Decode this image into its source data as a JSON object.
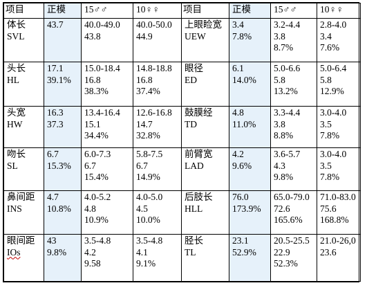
{
  "header": [
    "项目",
    "正模",
    "15♂♂",
    "10♀♀",
    "项目",
    "正模",
    "15♂♂",
    "10♀♀"
  ],
  "rows": [
    {
      "left": {
        "name": [
          "体长",
          "SVL"
        ],
        "holotype": [
          "43.7"
        ],
        "male": [
          "40.0-49.0",
          "43.8"
        ],
        "female": [
          "40.0-50.0",
          "44.9"
        ]
      },
      "right": {
        "name": [
          "上眼睑宽",
          "UEW"
        ],
        "holotype": [
          "3.4",
          "7.8%"
        ],
        "male": [
          "3.2-4.4",
          "3.8",
          "8.7%"
        ],
        "female": [
          "2.8-4.0",
          "3.4",
          "7.6%"
        ]
      }
    },
    {
      "left": {
        "name": [
          "头长",
          "HL"
        ],
        "holotype": [
          "17.1",
          "39.1%"
        ],
        "male": [
          "15.0-18.4",
          "16.8",
          "38.3%"
        ],
        "female": [
          "14.8-18.8",
          "16.8",
          "37.4%"
        ]
      },
      "right": {
        "name": [
          "眼径",
          "ED"
        ],
        "holotype": [
          "6.1",
          "14.0%"
        ],
        "male": [
          "5.0-6.6",
          "5.8",
          "13.2%"
        ],
        "female": [
          "5.0-6.4",
          "5.8",
          "12.9%"
        ]
      }
    },
    {
      "left": {
        "name": [
          "头宽",
          "HW"
        ],
        "holotype": [
          "16.3",
          "37.3"
        ],
        "male": [
          "13.4-16.4",
          "15.1",
          "34.4%"
        ],
        "female": [
          "12.6-16.8",
          "14.7",
          "32.8%"
        ]
      },
      "right": {
        "name": [
          "鼓膜经",
          "TD"
        ],
        "holotype": [
          "4.8",
          "11.0%"
        ],
        "male": [
          "3.3-4.4",
          "3.8",
          "8.8%"
        ],
        "female": [
          "3.0-4.0",
          "3.5",
          "7.8%"
        ]
      }
    },
    {
      "left": {
        "name": [
          "吻长",
          "SL"
        ],
        "holotype": [
          "6.7",
          "15.3%"
        ],
        "male": [
          "6.0-7.3",
          "6.7",
          "15.4%"
        ],
        "female": [
          "5.8-7.5",
          "6.7",
          "14.9%"
        ]
      },
      "right": {
        "name": [
          "前臂宽",
          "LAD"
        ],
        "holotype": [
          "4.2",
          "9.6%"
        ],
        "male": [
          "3.6-5.7",
          "4.3",
          "9.8%"
        ],
        "female": [
          "3.0-4.0",
          "3.5",
          "7.8%"
        ]
      }
    },
    {
      "left": {
        "name": [
          "鼻间距",
          "INS"
        ],
        "holotype": [
          "4.7",
          "10.8%"
        ],
        "male": [
          "4.0-5.2",
          "4.8",
          "10.9%"
        ],
        "female": [
          "4.0-5.0",
          "4.5",
          "10.0%"
        ]
      },
      "right": {
        "name": [
          "后肢长",
          "HLL"
        ],
        "holotype": [
          "76.0",
          "173.9%"
        ],
        "male": [
          "65.0-79.0",
          "72.6",
          "165.6%"
        ],
        "female": [
          "71.0-83.0",
          "75.6",
          "168.8%"
        ]
      }
    },
    {
      "left": {
        "name": [
          "眼间距",
          "IOs"
        ],
        "holotype": [
          "43",
          "9.8%"
        ],
        "male": [
          "3.5-4.8",
          "4.2",
          "9.58"
        ],
        "female": [
          "3.5-4.8",
          "4.1",
          "9.1%"
        ]
      },
      "right": {
        "name": [
          "胫长",
          "TL"
        ],
        "holotype": [
          "23.1",
          "52.9%"
        ],
        "male": [
          "20.5-25.5",
          "22.9",
          "52.3%"
        ],
        "female": [
          "21.0-26,0",
          "23.6"
        ]
      }
    }
  ],
  "colors": {
    "border": "#000000",
    "column_tint": "#e6f1fa",
    "spell_mark": "#c00000"
  }
}
